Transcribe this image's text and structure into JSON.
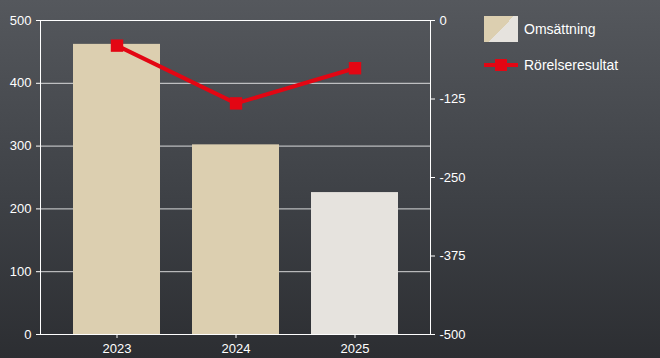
{
  "chart_data": {
    "type": "bar",
    "categories": [
      "2023",
      "2024",
      "2025"
    ],
    "series": [
      {
        "name": "Omsättning",
        "type": "bar",
        "colors": [
          "#dccfb0",
          "#dccfb0",
          "#e6e3de"
        ],
        "values": [
          462,
          302,
          226
        ]
      },
      {
        "name": "Rörelseresultat",
        "type": "line",
        "axis": "y2",
        "color": "#e30613",
        "marker": "square",
        "values": [
          -40,
          -132,
          -76
        ]
      }
    ],
    "ylim": [
      0,
      500
    ],
    "yticks": [
      0,
      100,
      200,
      300,
      400,
      500
    ],
    "y2lim": [
      -500,
      0
    ],
    "y2ticks": [
      0,
      -125,
      -250,
      -375,
      -500
    ],
    "grid": true,
    "legend": "right"
  }
}
